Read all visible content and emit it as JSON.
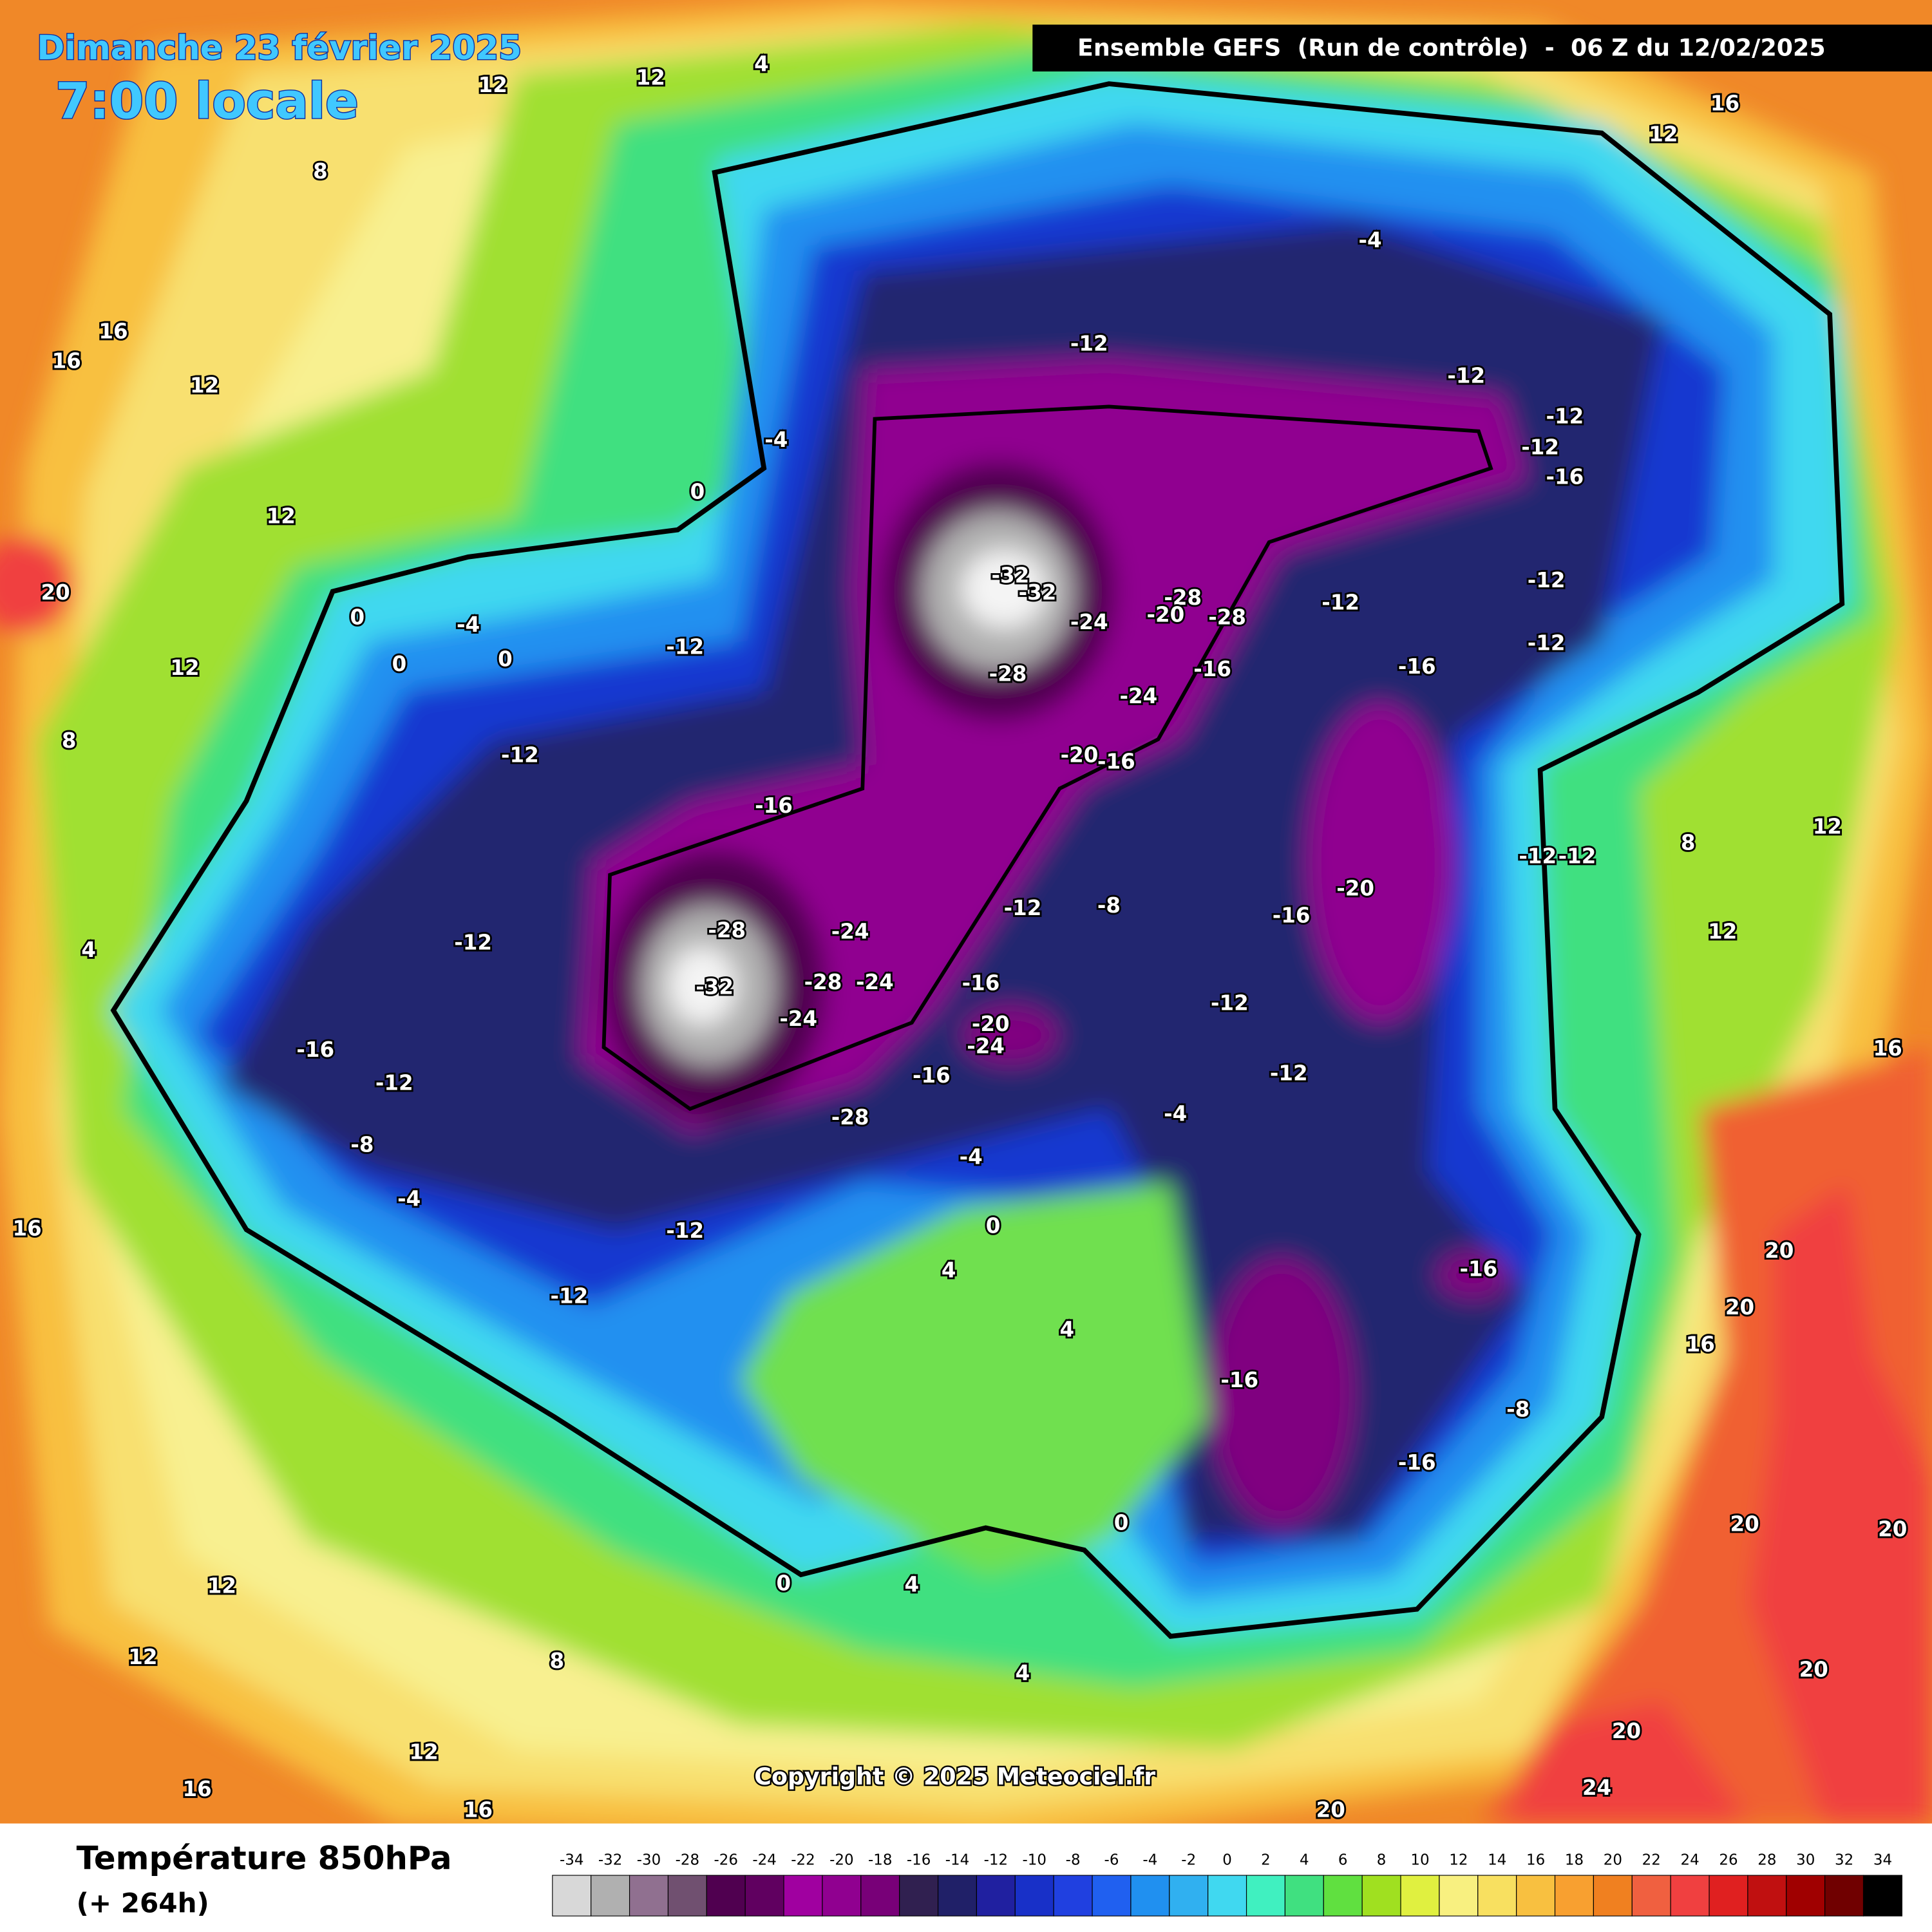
{
  "header": {
    "date": "Dimanche 23 février 2025",
    "time": "7:00 locale",
    "run": "Ensemble GEFS  (Run de contrôle)  -  06 Z du 12/02/2025",
    "copyright": "Copyright © 2025 Meteociel.fr"
  },
  "legend": {
    "title": "Température 850hPa",
    "subtitle": "(+ 264h)",
    "levels": [
      -34,
      -32,
      -30,
      -28,
      -26,
      -24,
      -22,
      -20,
      -18,
      -16,
      -14,
      -12,
      -10,
      -8,
      -6,
      -4,
      -2,
      0,
      2,
      4,
      6,
      8,
      10,
      12,
      14,
      16,
      18,
      20,
      22,
      24,
      26,
      28,
      30,
      32,
      34
    ],
    "colors": [
      "#d8d8d8",
      "#b0b0b0",
      "#907090",
      "#705070",
      "#500050",
      "#600060",
      "#a000a0",
      "#900090",
      "#780078",
      "#302050",
      "#202068",
      "#2020a0",
      "#1830c8",
      "#2040e0",
      "#2060f0",
      "#2090f0",
      "#30b0f0",
      "#40d8f0",
      "#40f0c0",
      "#40e080",
      "#60e040",
      "#a0e020",
      "#e0f040",
      "#f8f080",
      "#f8e060",
      "#f8c040",
      "#f8a030",
      "#f08020",
      "#f06040",
      "#f04040",
      "#e02020",
      "#c01010",
      "#a00000",
      "#700000",
      "#000000"
    ]
  },
  "map": {
    "contour_labels": [
      20,
      -12,
      -4,
      -12,
      -32,
      -32,
      -24,
      -28,
      -28,
      -20,
      -28,
      -16,
      -24,
      -20,
      -16,
      -12,
      -12,
      -12,
      -16,
      -20,
      -16,
      -12,
      -8,
      -16,
      -20,
      -24,
      -16,
      -28,
      -28,
      -32,
      -24,
      -28,
      -24,
      -24,
      -16,
      -12,
      -12,
      -16,
      -12,
      -8,
      -4,
      -12,
      -12,
      -4,
      0,
      4,
      4,
      -4,
      -12,
      -12,
      -16,
      -16,
      -16,
      -8,
      0,
      0,
      4,
      4,
      20,
      20,
      24,
      20,
      20,
      20,
      20,
      20,
      16,
      16,
      12,
      12,
      8,
      -12,
      -12,
      -16,
      -12,
      -12,
      16,
      12,
      12,
      12,
      4,
      8,
      12,
      16,
      16,
      12,
      8,
      4,
      16,
      12,
      12,
      16,
      16,
      12,
      8,
      12,
      0,
      0,
      0,
      0,
      -4,
      -12,
      -4
    ]
  }
}
